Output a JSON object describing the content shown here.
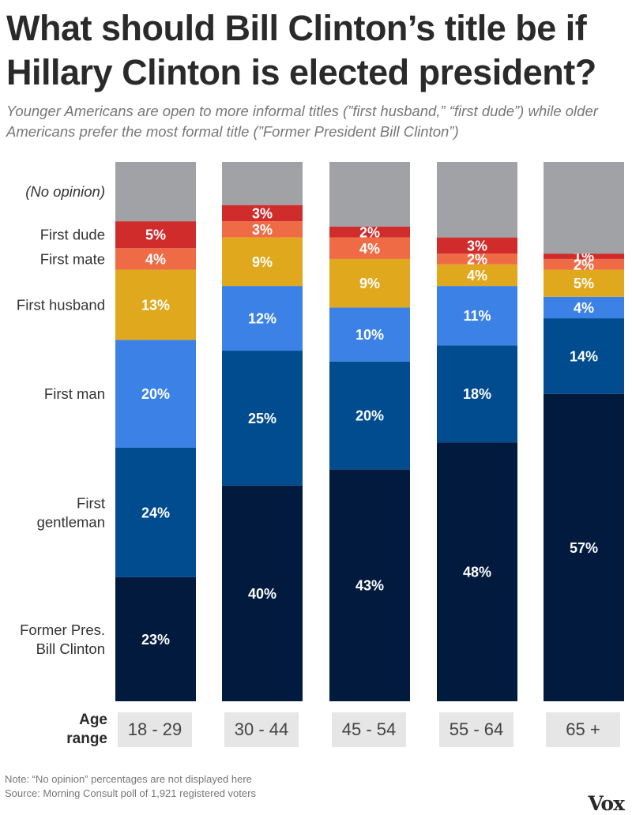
{
  "title": "What should Bill Clinton’s title be if Hillary Clinton is elected president?",
  "subtitle": "Younger Americans are open to more informal titles (”first husband,” “first dude”) while older Americans prefer the most formal title (”Former President Bill Clinton”)",
  "chart_data": {
    "type": "bar",
    "stacked": true,
    "title": "What should Bill Clinton’s title be if Hillary Clinton is elected president?",
    "categories": [
      "18 - 29",
      "30 - 44",
      "45 - 54",
      "55 - 64",
      "65 +"
    ],
    "xlabel": "Age range",
    "ylim": [
      0,
      100
    ],
    "series": [
      {
        "name": "Former Pres. Bill Clinton",
        "labels": [
          "Former Pres.",
          "Bill Clinton"
        ],
        "color": "#021a3d",
        "values": [
          23,
          40,
          43,
          48,
          57
        ]
      },
      {
        "name": "First gentleman",
        "labels": [
          "First",
          "gentleman"
        ],
        "color": "#014b8f",
        "values": [
          24,
          25,
          20,
          18,
          14
        ]
      },
      {
        "name": "First man",
        "labels": [
          "First man"
        ],
        "color": "#3c82e6",
        "values": [
          20,
          12,
          10,
          11,
          4
        ]
      },
      {
        "name": "First husband",
        "labels": [
          "First husband"
        ],
        "color": "#e0a81c",
        "values": [
          13,
          9,
          9,
          4,
          5
        ]
      },
      {
        "name": "First mate",
        "labels": [
          "First mate"
        ],
        "color": "#ef6b46",
        "values": [
          4,
          3,
          4,
          2,
          2
        ]
      },
      {
        "name": "First dude",
        "labels": [
          "First dude"
        ],
        "color": "#d02c2c",
        "values": [
          5,
          3,
          2,
          3,
          1
        ]
      },
      {
        "name": "(No opinion)",
        "labels": [
          "(No opinion)"
        ],
        "color": "#a1a2a5",
        "values": [
          11,
          8,
          12,
          14,
          17
        ],
        "show_values": false
      }
    ]
  },
  "age_range_label": "Age range",
  "note": "Note: “No opinion” percentages are not displayed here",
  "source": "Source: Morning Consult poll of 1,921 registered voters",
  "logo": "Vox"
}
